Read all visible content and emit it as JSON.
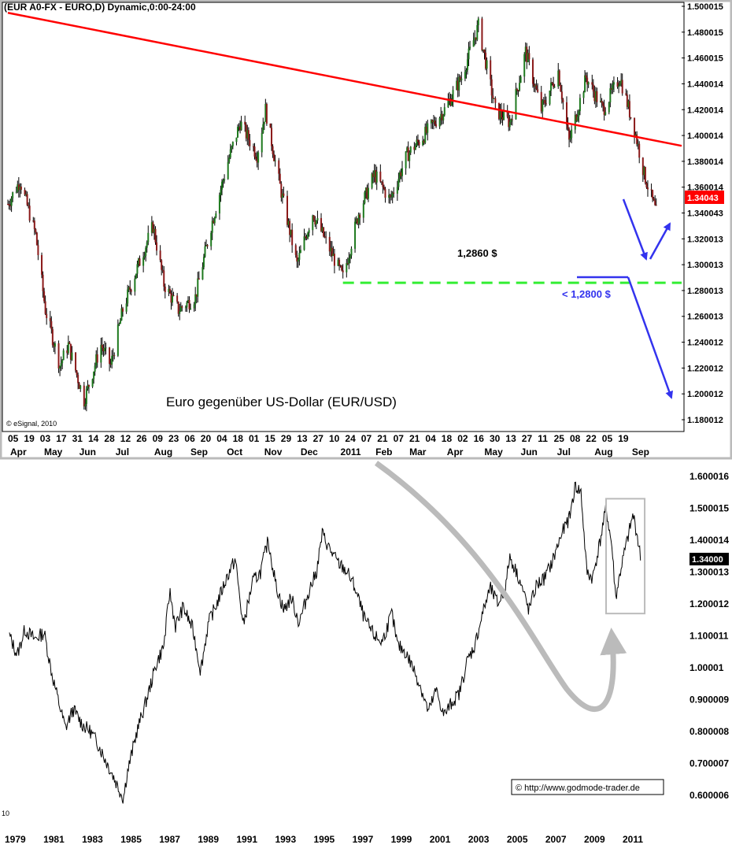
{
  "chart_data": [
    {
      "type": "candlestick",
      "header": "(EUR A0-FX - EURO,D) Dynamic,0:00-24:00",
      "title": "Euro gegenüber US-Dollar (EUR/USD)",
      "source": "© eSignal, 2010",
      "y_ticks": [
        "1.500015",
        "1.480015",
        "1.460015",
        "1.440014",
        "1.420014",
        "1.400014",
        "1.380014",
        "1.360014",
        "1.340043",
        "1.320013",
        "1.300013",
        "1.280013",
        "1.260013",
        "1.240012",
        "1.220012",
        "1.200012",
        "1.180012"
      ],
      "last_price": "1.34043",
      "x_day_ticks": [
        "05",
        "19",
        "03",
        "17",
        "31",
        "14",
        "28",
        "12",
        "26",
        "09",
        "23",
        "06",
        "20",
        "04",
        "18",
        "01",
        "15",
        "29",
        "13",
        "27",
        "10",
        "24",
        "07",
        "21",
        "07",
        "21",
        "04",
        "18",
        "02",
        "16",
        "30",
        "13",
        "27",
        "11",
        "25",
        "08",
        "22",
        "05",
        "19"
      ],
      "x_month_ticks": [
        "Apr",
        "May",
        "Jun",
        "Jul",
        "Aug",
        "Sep",
        "Oct",
        "Nov",
        "Dec",
        "2011",
        "Feb",
        "Mar",
        "Apr",
        "May",
        "Jun",
        "Jul",
        "Aug",
        "Sep"
      ],
      "closes": [
        {
          "date": "2010-04-05",
          "close": 1.347
        },
        {
          "date": "2010-04-15",
          "close": 1.365
        },
        {
          "date": "2010-04-28",
          "close": 1.323
        },
        {
          "date": "2010-05-06",
          "close": 1.265
        },
        {
          "date": "2010-05-18",
          "close": 1.222
        },
        {
          "date": "2010-05-25",
          "close": 1.238
        },
        {
          "date": "2010-06-07",
          "close": 1.195
        },
        {
          "date": "2010-06-21",
          "close": 1.238
        },
        {
          "date": "2010-06-29",
          "close": 1.222
        },
        {
          "date": "2010-07-09",
          "close": 1.265
        },
        {
          "date": "2010-07-20",
          "close": 1.295
        },
        {
          "date": "2010-08-03",
          "close": 1.33
        },
        {
          "date": "2010-08-12",
          "close": 1.285
        },
        {
          "date": "2010-08-24",
          "close": 1.265
        },
        {
          "date": "2010-09-07",
          "close": 1.275
        },
        {
          "date": "2010-09-20",
          "close": 1.33
        },
        {
          "date": "2010-10-04",
          "close": 1.38
        },
        {
          "date": "2010-10-14",
          "close": 1.41
        },
        {
          "date": "2010-10-28",
          "close": 1.385
        },
        {
          "date": "2010-11-04",
          "close": 1.42
        },
        {
          "date": "2010-11-15",
          "close": 1.365
        },
        {
          "date": "2010-11-30",
          "close": 1.3
        },
        {
          "date": "2010-12-13",
          "close": 1.34
        },
        {
          "date": "2011-01-07",
          "close": 1.29
        },
        {
          "date": "2011-01-20",
          "close": 1.34
        },
        {
          "date": "2011-02-02",
          "close": 1.37
        },
        {
          "date": "2011-02-15",
          "close": 1.35
        },
        {
          "date": "2011-03-01",
          "close": 1.385
        },
        {
          "date": "2011-03-15",
          "close": 1.4
        },
        {
          "date": "2011-04-01",
          "close": 1.42
        },
        {
          "date": "2011-04-15",
          "close": 1.445
        },
        {
          "date": "2011-04-29",
          "close": 1.485
        },
        {
          "date": "2011-05-13",
          "close": 1.42
        },
        {
          "date": "2011-05-25",
          "close": 1.41
        },
        {
          "date": "2011-06-07",
          "close": 1.465
        },
        {
          "date": "2011-06-20",
          "close": 1.42
        },
        {
          "date": "2011-07-04",
          "close": 1.45
        },
        {
          "date": "2011-07-13",
          "close": 1.395
        },
        {
          "date": "2011-07-27",
          "close": 1.445
        },
        {
          "date": "2011-08-10",
          "close": 1.42
        },
        {
          "date": "2011-08-24",
          "close": 1.445
        },
        {
          "date": "2011-09-05",
          "close": 1.405
        },
        {
          "date": "2011-09-13",
          "close": 1.37
        },
        {
          "date": "2011-09-23",
          "close": 1.34
        }
      ],
      "trendline": {
        "start": {
          "date": "2010-04-05",
          "value": 1.495
        },
        "end": {
          "date": "2011-10-14",
          "value": 1.392
        },
        "color": "#ff0000"
      },
      "support_line": {
        "label": "1,2860 $",
        "value": 1.286,
        "start_date": "2011-01-07",
        "end_date": "2011-10-14",
        "color": "#33ee33"
      },
      "target_annotation": {
        "label": "< 1,2800 $",
        "value": 1.28,
        "color": "#3333ee"
      },
      "candle_colors": {
        "up": "#1f7a1f",
        "down": "#8b1a1a",
        "price_box": "#ff0000"
      },
      "panel_border_color": "#bbbbbb"
    },
    {
      "type": "line",
      "y_ticks": [
        "1.600016",
        "1.500015",
        "1.400014",
        "1.300013",
        "1.200012",
        "1.100011",
        "1.00001",
        "0.900009",
        "0.800008",
        "0.700007",
        "0.600006"
      ],
      "last_price": "1.34000",
      "x_ticks": [
        "1979",
        "1981",
        "1983",
        "1985",
        "1987",
        "1989",
        "1991",
        "1993",
        "1995",
        "1997",
        "1999",
        "2001",
        "2003",
        "2005",
        "2007",
        "2009",
        "2011"
      ],
      "corner_label": "10",
      "credit": "© http://www.godmode-trader.de",
      "series": [
        {
          "x": 1979.0,
          "y": 1.1
        },
        {
          "x": 1979.4,
          "y": 1.04
        },
        {
          "x": 1979.8,
          "y": 1.12
        },
        {
          "x": 1980.3,
          "y": 1.09
        },
        {
          "x": 1980.8,
          "y": 1.11
        },
        {
          "x": 1981.2,
          "y": 0.98
        },
        {
          "x": 1981.6,
          "y": 0.88
        },
        {
          "x": 1981.9,
          "y": 0.81
        },
        {
          "x": 1982.3,
          "y": 0.87
        },
        {
          "x": 1982.8,
          "y": 0.82
        },
        {
          "x": 1983.2,
          "y": 0.8
        },
        {
          "x": 1983.6,
          "y": 0.76
        },
        {
          "x": 1983.9,
          "y": 0.72
        },
        {
          "x": 1984.3,
          "y": 0.67
        },
        {
          "x": 1984.6,
          "y": 0.63
        },
        {
          "x": 1984.9,
          "y": 0.59
        },
        {
          "x": 1985.1,
          "y": 0.67
        },
        {
          "x": 1985.6,
          "y": 0.8
        },
        {
          "x": 1986.1,
          "y": 0.9
        },
        {
          "x": 1986.6,
          "y": 1.01
        },
        {
          "x": 1987.0,
          "y": 1.07
        },
        {
          "x": 1987.3,
          "y": 1.24
        },
        {
          "x": 1987.6,
          "y": 1.13
        },
        {
          "x": 1988.0,
          "y": 1.19
        },
        {
          "x": 1988.5,
          "y": 1.12
        },
        {
          "x": 1988.9,
          "y": 0.99
        },
        {
          "x": 1989.3,
          "y": 1.14
        },
        {
          "x": 1989.8,
          "y": 1.21
        },
        {
          "x": 1990.3,
          "y": 1.29
        },
        {
          "x": 1990.7,
          "y": 1.34
        },
        {
          "x": 1991.1,
          "y": 1.13
        },
        {
          "x": 1991.6,
          "y": 1.27
        },
        {
          "x": 1992.0,
          "y": 1.3
        },
        {
          "x": 1992.4,
          "y": 1.4
        },
        {
          "x": 1992.8,
          "y": 1.26
        },
        {
          "x": 1993.2,
          "y": 1.18
        },
        {
          "x": 1993.6,
          "y": 1.22
        },
        {
          "x": 1994.0,
          "y": 1.14
        },
        {
          "x": 1994.5,
          "y": 1.24
        },
        {
          "x": 1994.9,
          "y": 1.3
        },
        {
          "x": 1995.2,
          "y": 1.42
        },
        {
          "x": 1995.6,
          "y": 1.37
        },
        {
          "x": 1996.0,
          "y": 1.33
        },
        {
          "x": 1996.5,
          "y": 1.3
        },
        {
          "x": 1996.9,
          "y": 1.25
        },
        {
          "x": 1997.4,
          "y": 1.15
        },
        {
          "x": 1997.9,
          "y": 1.1
        },
        {
          "x": 1998.3,
          "y": 1.08
        },
        {
          "x": 1998.8,
          "y": 1.17
        },
        {
          "x": 1999.1,
          "y": 1.07
        },
        {
          "x": 1999.5,
          "y": 1.05
        },
        {
          "x": 1999.9,
          "y": 1.0
        },
        {
          "x": 2000.3,
          "y": 0.94
        },
        {
          "x": 2000.7,
          "y": 0.86
        },
        {
          "x": 2001.1,
          "y": 0.93
        },
        {
          "x": 2001.5,
          "y": 0.85
        },
        {
          "x": 2001.9,
          "y": 0.89
        },
        {
          "x": 2002.3,
          "y": 0.92
        },
        {
          "x": 2002.7,
          "y": 1.02
        },
        {
          "x": 2003.1,
          "y": 1.07
        },
        {
          "x": 2003.5,
          "y": 1.17
        },
        {
          "x": 2003.9,
          "y": 1.25
        },
        {
          "x": 2004.3,
          "y": 1.2
        },
        {
          "x": 2004.7,
          "y": 1.25
        },
        {
          "x": 2004.9,
          "y": 1.35
        },
        {
          "x": 2005.4,
          "y": 1.28
        },
        {
          "x": 2005.9,
          "y": 1.18
        },
        {
          "x": 2006.3,
          "y": 1.26
        },
        {
          "x": 2006.7,
          "y": 1.28
        },
        {
          "x": 2007.1,
          "y": 1.33
        },
        {
          "x": 2007.6,
          "y": 1.42
        },
        {
          "x": 2008.0,
          "y": 1.47
        },
        {
          "x": 2008.3,
          "y": 1.57
        },
        {
          "x": 2008.6,
          "y": 1.55
        },
        {
          "x": 2008.9,
          "y": 1.3
        },
        {
          "x": 2009.2,
          "y": 1.28
        },
        {
          "x": 2009.6,
          "y": 1.4
        },
        {
          "x": 2009.9,
          "y": 1.5
        },
        {
          "x": 2010.2,
          "y": 1.38
        },
        {
          "x": 2010.4,
          "y": 1.22
        },
        {
          "x": 2010.7,
          "y": 1.32
        },
        {
          "x": 2011.0,
          "y": 1.4
        },
        {
          "x": 2011.3,
          "y": 1.48
        },
        {
          "x": 2011.5,
          "y": 1.42
        },
        {
          "x": 2011.7,
          "y": 1.34
        }
      ],
      "highlight_box": {
        "x_range": [
          2009.9,
          2011.9
        ],
        "y_range": [
          1.17,
          1.53
        ],
        "color": "#bbbbbb"
      },
      "arrow_color": "#bbbbbb"
    }
  ]
}
